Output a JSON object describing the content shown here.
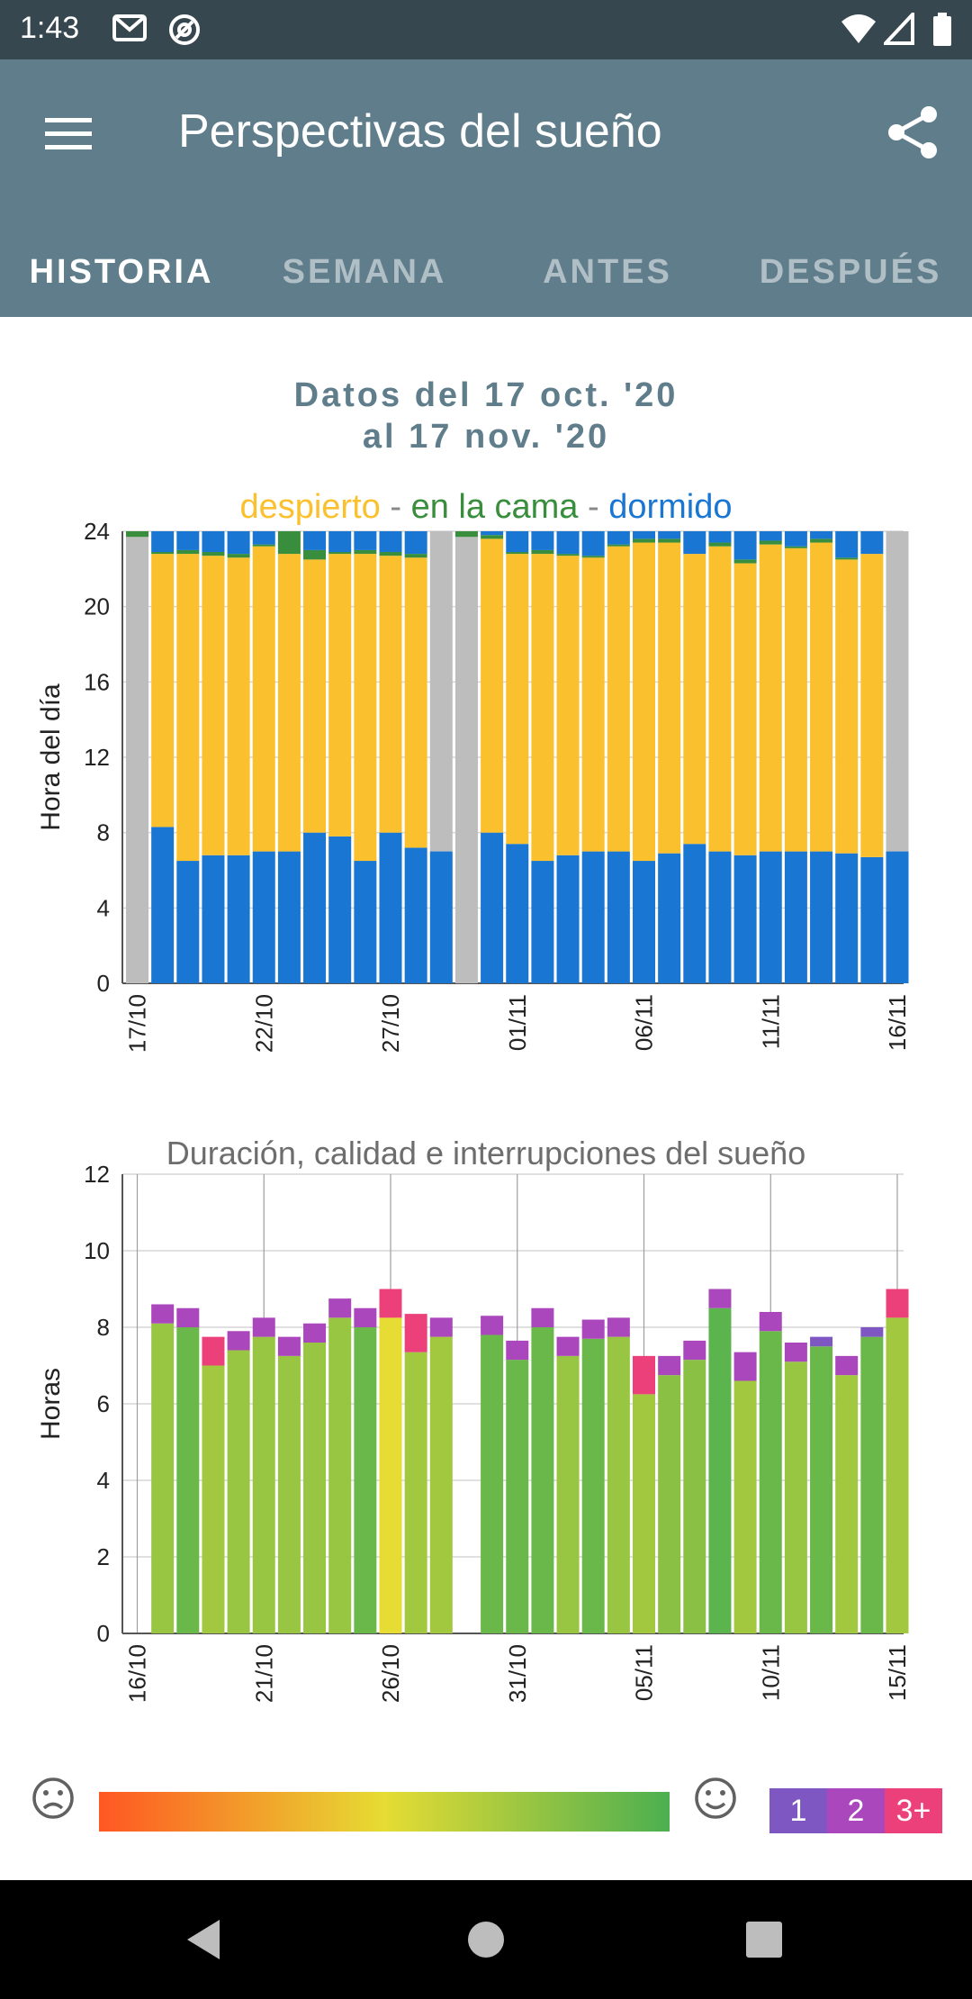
{
  "status_bar": {
    "time": "1:43"
  },
  "app_bar": {
    "title": "Perspectivas del sueño"
  },
  "tabs": [
    {
      "label": "HISTORIA",
      "active": true
    },
    {
      "label": "SEMANA",
      "active": false
    },
    {
      "label": "ANTES",
      "active": false
    },
    {
      "label": "DESPUÉS",
      "active": false
    }
  ],
  "date_range": {
    "line1": "Datos del 17 oct. '20",
    "line2": "al 17 nov. '20"
  },
  "legend": {
    "awake": "despierto",
    "sep1": " - ",
    "in_bed": "en la cama",
    "sep2": " - ",
    "asleep": "dormido",
    "colors": {
      "awake": "#fbc02d",
      "in_bed": "#388e3c",
      "asleep": "#1976d2"
    }
  },
  "chart_data": [
    {
      "type": "bar",
      "ylabel": "Hora del día",
      "ylim": [
        0,
        24
      ],
      "yticks": [
        0,
        4,
        8,
        12,
        16,
        20,
        24
      ],
      "xtick_labels": [
        "17/10",
        "22/10",
        "27/10",
        "01/11",
        "06/11",
        "11/11",
        "16/11"
      ],
      "xtick_positions": [
        0,
        5,
        10,
        15,
        20,
        25,
        30
      ],
      "colors": {
        "asleep": "#1976d2",
        "awake": "#fbc02d",
        "in_bed": "#388e3c",
        "no_data": "#bdbdbd"
      },
      "bars": [
        {
          "no_data": true
        },
        {
          "wake": 8.3,
          "bed": 22.8,
          "sleep": 22.9
        },
        {
          "wake": 6.5,
          "bed": 22.8,
          "sleep": 23.0
        },
        {
          "wake": 6.8,
          "bed": 22.7,
          "sleep": 22.9
        },
        {
          "wake": 6.8,
          "bed": 22.6,
          "sleep": 22.8
        },
        {
          "wake": 7.0,
          "bed": 23.2,
          "sleep": 23.3
        },
        {
          "wake": 7.0,
          "bed": 22.8,
          "sleep": 24.0
        },
        {
          "wake": 8.0,
          "bed": 22.5,
          "sleep": 23.0
        },
        {
          "wake": 7.8,
          "bed": 22.8,
          "sleep": 22.9
        },
        {
          "wake": 6.5,
          "bed": 22.8,
          "sleep": 23.0
        },
        {
          "wake": 8.0,
          "bed": 22.7,
          "sleep": 22.9
        },
        {
          "wake": 7.2,
          "bed": 22.6,
          "sleep": 22.8
        },
        {
          "wake": 7.0,
          "bed": 0,
          "sleep": 0,
          "top_gray": true
        },
        {
          "no_data": true
        },
        {
          "wake": 8.0,
          "bed": 23.6,
          "sleep": 23.8
        },
        {
          "wake": 7.4,
          "bed": 22.8,
          "sleep": 22.9
        },
        {
          "wake": 6.5,
          "bed": 22.8,
          "sleep": 23.0
        },
        {
          "wake": 6.8,
          "bed": 22.7,
          "sleep": 22.8
        },
        {
          "wake": 7.0,
          "bed": 22.6,
          "sleep": 22.7
        },
        {
          "wake": 7.0,
          "bed": 23.2,
          "sleep": 23.3
        },
        {
          "wake": 6.5,
          "bed": 23.4,
          "sleep": 23.6
        },
        {
          "wake": 6.9,
          "bed": 23.4,
          "sleep": 23.6
        },
        {
          "wake": 7.4,
          "bed": 22.8,
          "sleep": 22.8
        },
        {
          "wake": 7.0,
          "bed": 23.2,
          "sleep": 23.4
        },
        {
          "wake": 6.8,
          "bed": 22.3,
          "sleep": 22.5
        },
        {
          "wake": 7.0,
          "bed": 23.3,
          "sleep": 23.5
        },
        {
          "wake": 7.0,
          "bed": 23.1,
          "sleep": 23.2
        },
        {
          "wake": 7.0,
          "bed": 23.4,
          "sleep": 23.6
        },
        {
          "wake": 6.9,
          "bed": 22.5,
          "sleep": 22.6
        },
        {
          "wake": 6.7,
          "bed": 22.8,
          "sleep": 22.8
        },
        {
          "wake": 7.0,
          "bed": 0,
          "sleep": 0,
          "top_gray": true
        }
      ]
    },
    {
      "type": "bar",
      "title": "Duración, calidad e interrupciones del sueño",
      "ylabel": "Horas",
      "ylim": [
        0,
        12
      ],
      "yticks": [
        0,
        2,
        4,
        6,
        8,
        10,
        12
      ],
      "xtick_labels": [
        "16/10",
        "21/10",
        "26/10",
        "31/10",
        "05/11",
        "10/11",
        "15/11"
      ],
      "xtick_positions": [
        0,
        5,
        10,
        15,
        20,
        25,
        30
      ],
      "interruption_colors": {
        "1": "#7e57c2",
        "2": "#ab47bc",
        "3+": "#ec407a"
      },
      "bars": [
        {
          "h": null
        },
        {
          "h": 8.1,
          "q": 0.75,
          "i": 0.5,
          "ic": "2"
        },
        {
          "h": 8.0,
          "q": 0.9,
          "i": 0.5,
          "ic": "2"
        },
        {
          "h": 7.0,
          "q": 0.72,
          "i": 0.75,
          "ic": "3+"
        },
        {
          "h": 7.4,
          "q": 0.75,
          "i": 0.5,
          "ic": "2"
        },
        {
          "h": 7.75,
          "q": 0.75,
          "i": 0.5,
          "ic": "2"
        },
        {
          "h": 7.25,
          "q": 0.75,
          "i": 0.5,
          "ic": "2"
        },
        {
          "h": 7.6,
          "q": 0.75,
          "i": 0.5,
          "ic": "2"
        },
        {
          "h": 8.25,
          "q": 0.75,
          "i": 0.5,
          "ic": "2"
        },
        {
          "h": 8.0,
          "q": 0.9,
          "i": 0.5,
          "ic": "2"
        },
        {
          "h": 8.25,
          "q": 0.5,
          "i": 0.75,
          "ic": "3+"
        },
        {
          "h": 7.35,
          "q": 0.72,
          "i": 1.0,
          "ic": "3+"
        },
        {
          "h": 7.75,
          "q": 0.72,
          "i": 0.5,
          "ic": "2"
        },
        {
          "h": null
        },
        {
          "h": 7.8,
          "q": 0.9,
          "i": 0.5,
          "ic": "2"
        },
        {
          "h": 7.15,
          "q": 0.9,
          "i": 0.5,
          "ic": "2"
        },
        {
          "h": 8.0,
          "q": 0.9,
          "i": 0.5,
          "ic": "2"
        },
        {
          "h": 7.25,
          "q": 0.75,
          "i": 0.5,
          "ic": "2"
        },
        {
          "h": 7.7,
          "q": 0.9,
          "i": 0.5,
          "ic": "2"
        },
        {
          "h": 7.75,
          "q": 0.75,
          "i": 0.5,
          "ic": "2"
        },
        {
          "h": 6.25,
          "q": 0.72,
          "i": 1.0,
          "ic": "3+"
        },
        {
          "h": 6.75,
          "q": 0.8,
          "i": 0.5,
          "ic": "2"
        },
        {
          "h": 7.15,
          "q": 0.8,
          "i": 0.5,
          "ic": "2"
        },
        {
          "h": 8.5,
          "q": 0.95,
          "i": 0.5,
          "ic": "2"
        },
        {
          "h": 6.6,
          "q": 0.72,
          "i": 0.75,
          "ic": "2"
        },
        {
          "h": 7.9,
          "q": 0.9,
          "i": 0.5,
          "ic": "2"
        },
        {
          "h": 7.1,
          "q": 0.75,
          "i": 0.5,
          "ic": "2"
        },
        {
          "h": 7.5,
          "q": 0.9,
          "i": 0.25,
          "ic": "1"
        },
        {
          "h": 6.75,
          "q": 0.72,
          "i": 0.5,
          "ic": "2"
        },
        {
          "h": 7.75,
          "q": 0.9,
          "i": 0.25,
          "ic": "1"
        },
        {
          "h": 8.25,
          "q": 0.72,
          "i": 0.75,
          "ic": "3+"
        }
      ]
    }
  ],
  "quality_scale": {
    "sad_icon": "sad-face-icon",
    "happy_icon": "happy-face-icon",
    "gradient_colors": [
      "#ff5722",
      "#e6dc33",
      "#4caf50"
    ]
  },
  "interruptions_legend": [
    {
      "label": "1",
      "color": "#7e57c2"
    },
    {
      "label": "2",
      "color": "#ab47bc"
    },
    {
      "label": "3+",
      "color": "#ec407a"
    }
  ],
  "nav_bar": {
    "back_icon": "back-icon",
    "home_icon": "home-icon",
    "recents_icon": "recents-icon"
  }
}
